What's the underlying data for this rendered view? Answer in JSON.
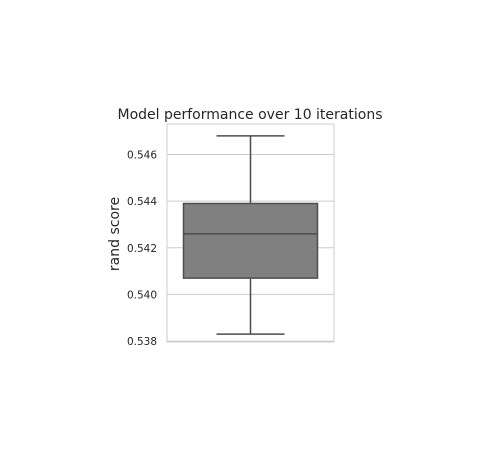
{
  "chart_data": {
    "type": "box",
    "title": "Model performance over 10 iterations",
    "xlabel": "",
    "ylabel": "rand score",
    "ylim": [
      0.53796,
      0.54731
    ],
    "yticks": [
      0.538,
      0.54,
      0.542,
      0.544,
      0.546
    ],
    "ytick_labels": [
      "0.538",
      "0.540",
      "0.542",
      "0.544",
      "0.546"
    ],
    "grid": true,
    "box": {
      "min": 0.5383,
      "q1": 0.5407,
      "median": 0.5426,
      "q3": 0.5439,
      "max": 0.5468
    },
    "colors": {
      "box_fill": "#808080",
      "box_edge": "#4d4d4d",
      "grid": "#cccccc",
      "text": "#262626"
    }
  }
}
